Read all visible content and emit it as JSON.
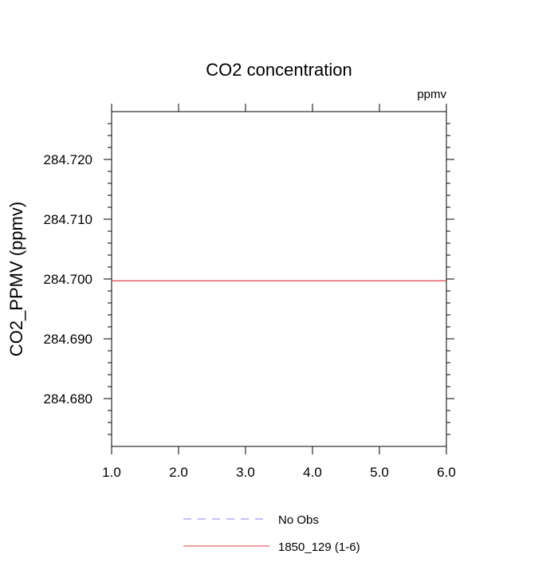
{
  "chart_data": {
    "type": "line",
    "title": "CO2 concentration",
    "units": "ppmv",
    "xlabel": "",
    "ylabel": "CO2_PPMV  (ppmv)",
    "xlim": [
      1.0,
      6.0
    ],
    "ylim": [
      284.672,
      284.728
    ],
    "x_ticks": [
      1.0,
      2.0,
      3.0,
      4.0,
      5.0,
      6.0
    ],
    "x_tick_labels": [
      "1.0",
      "2.0",
      "3.0",
      "4.0",
      "5.0",
      "6.0"
    ],
    "y_ticks": [
      284.68,
      284.69,
      284.7,
      284.71,
      284.72
    ],
    "y_tick_labels": [
      "284.680",
      "284.690",
      "284.700",
      "284.710",
      "284.720"
    ],
    "grid": false,
    "legend_position": "bottom",
    "series": [
      {
        "name": "No Obs",
        "color": "#8080ff",
        "dash": "dashed",
        "x": [],
        "values": []
      },
      {
        "name": "1850_129 (1-6)",
        "color": "#e04040",
        "dash": "solid",
        "x": [
          1.0,
          2.0,
          3.0,
          4.0,
          5.0,
          6.0
        ],
        "values": [
          284.6997,
          284.6997,
          284.6997,
          284.6997,
          284.6997,
          284.6997
        ]
      }
    ]
  }
}
